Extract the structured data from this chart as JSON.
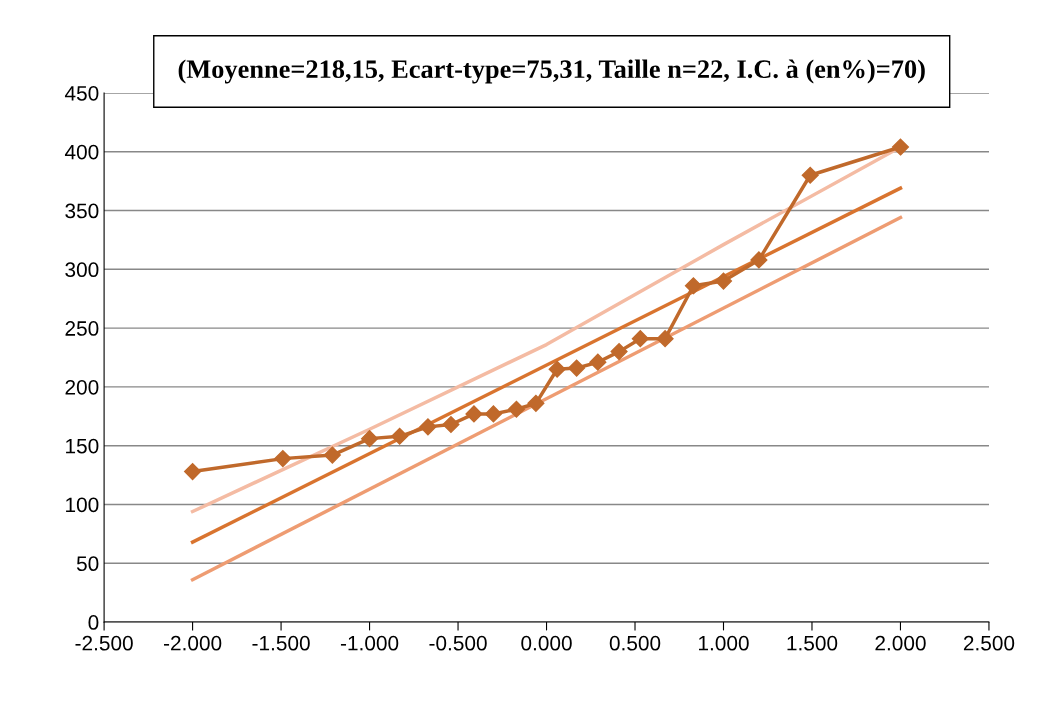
{
  "chart_data": {
    "type": "line",
    "title": "(Moyenne=218,15, Ecart-type=75,31, Taille n=22, I.C. à (en%)=70)",
    "series": [
      {
        "color": "#f4bba3",
        "marker": "none",
        "x": [
          -2.0,
          -1.0,
          0.0,
          1.0,
          2.0
        ],
        "values": [
          94,
          164,
          236,
          321,
          404
        ]
      },
      {
        "color": "#d9742f",
        "marker": "none",
        "x": [
          -2.0,
          2.0
        ],
        "values": [
          68,
          369
        ]
      },
      {
        "color": "#ee9c72",
        "marker": "none",
        "x": [
          -2.0,
          2.0
        ],
        "values": [
          36,
          344
        ]
      },
      {
        "color": "#c0692b",
        "marker": "diamond",
        "x": [
          -2.0,
          -1.49,
          -1.21,
          -1.0,
          -0.83,
          -0.67,
          -0.54,
          -0.41,
          -0.3,
          -0.17,
          -0.06,
          0.06,
          0.17,
          0.29,
          0.41,
          0.53,
          0.67,
          0.83,
          1.0,
          1.2,
          1.49,
          2.0
        ],
        "values": [
          128,
          139,
          142,
          156,
          158,
          166,
          168,
          177,
          177,
          181,
          186,
          215,
          216,
          221,
          230,
          241,
          241,
          286,
          290,
          308,
          380,
          404
        ]
      }
    ],
    "xlim": [
      -2.5,
      2.5
    ],
    "xticks": [
      {
        "value": -2.5,
        "label": "-2.500"
      },
      {
        "value": -2.0,
        "label": "-2.000"
      },
      {
        "value": -1.5,
        "label": "-1.500"
      },
      {
        "value": -1.0,
        "label": "-1.000"
      },
      {
        "value": -0.5,
        "label": "-0.500"
      },
      {
        "value": 0.0,
        "label": "0.000"
      },
      {
        "value": 0.5,
        "label": "0.500"
      },
      {
        "value": 1.0,
        "label": "1.000"
      },
      {
        "value": 1.5,
        "label": "1.500"
      },
      {
        "value": 2.0,
        "label": "2.000"
      },
      {
        "value": 2.5,
        "label": "2.500"
      }
    ],
    "ylim": [
      0,
      450
    ],
    "yticks": [
      0,
      50,
      100,
      150,
      200,
      250,
      300,
      350,
      400,
      450
    ],
    "grid": "y",
    "legend": false
  }
}
